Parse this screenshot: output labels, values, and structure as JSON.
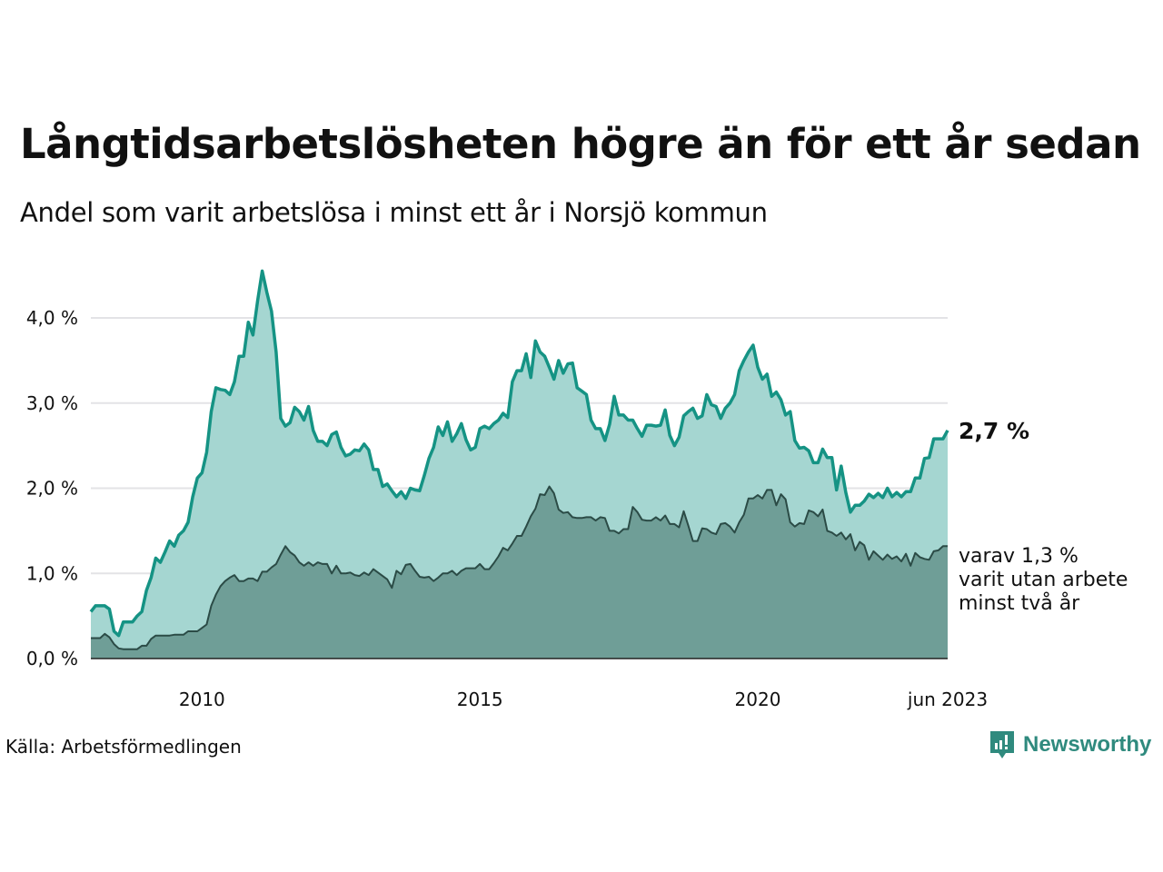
{
  "header": {
    "title": "Långtidsarbetslösheten högre än för ett år sedan",
    "subtitle": "Andel som varit arbetslösa i minst ett år i Norsjö kommun"
  },
  "footer": {
    "source": "Källa: Arbetsförmedlingen",
    "brand": "Newsworthy",
    "brand_icon": "newsworthy-logo-icon"
  },
  "colors": {
    "total_line": "#159384",
    "total_fill": "#a5d6d1",
    "long_line": "#2b4b46",
    "long_fill": "#6f9e97",
    "grid": "#e3e3e6",
    "brand": "#2f8a7e"
  },
  "chart_data": {
    "type": "area",
    "title": "Långtidsarbetslösheten högre än för ett år sedan",
    "subtitle": "Andel som varit arbetslösa i minst ett år i Norsjö kommun",
    "xlabel": "",
    "ylabel": "",
    "x_start": "2008-01",
    "x_end": "2023-06",
    "frequency": "monthly",
    "ylim": [
      0,
      4.6
    ],
    "y_ticks": [
      0,
      1,
      2,
      3,
      4
    ],
    "y_tick_labels": [
      "0,0 %",
      "1,0 %",
      "2,0 %",
      "3,0 %",
      "4,0 %"
    ],
    "x_ticks": [
      "2010-01",
      "2015-01",
      "2020-01",
      "2023-06"
    ],
    "x_tick_labels": [
      "2010",
      "2015",
      "2020",
      "jun 2023"
    ],
    "grid": true,
    "legend": "none (direct end labels, right)",
    "series": [
      {
        "name": "Arbetslösa minst ett år",
        "end_label": "2,7 %",
        "values": [
          0.55,
          0.62,
          0.62,
          0.62,
          0.58,
          0.32,
          0.27,
          0.43,
          0.43,
          0.43,
          0.5,
          0.55,
          0.8,
          0.95,
          1.18,
          1.13,
          1.25,
          1.38,
          1.32,
          1.45,
          1.5,
          1.6,
          1.9,
          2.12,
          2.18,
          2.42,
          2.9,
          3.18,
          3.16,
          3.15,
          3.1,
          3.25,
          3.55,
          3.55,
          3.95,
          3.8,
          4.2,
          4.55,
          4.3,
          4.08,
          3.6,
          2.82,
          2.73,
          2.77,
          2.95,
          2.9,
          2.8,
          2.96,
          2.68,
          2.55,
          2.55,
          2.5,
          2.63,
          2.66,
          2.48,
          2.38,
          2.4,
          2.45,
          2.44,
          2.52,
          2.45,
          2.22,
          2.22,
          2.02,
          2.05,
          1.97,
          1.9,
          1.96,
          1.88,
          2.0,
          1.98,
          1.97,
          2.15,
          2.35,
          2.48,
          2.72,
          2.62,
          2.78,
          2.55,
          2.64,
          2.76,
          2.57,
          2.45,
          2.48,
          2.7,
          2.73,
          2.7,
          2.76,
          2.8,
          2.88,
          2.83,
          3.25,
          3.38,
          3.38,
          3.58,
          3.3,
          3.73,
          3.6,
          3.55,
          3.42,
          3.28,
          3.5,
          3.35,
          3.46,
          3.47,
          3.18,
          3.14,
          3.1,
          2.8,
          2.7,
          2.7,
          2.56,
          2.75,
          3.08,
          2.86,
          2.86,
          2.8,
          2.8,
          2.7,
          2.61,
          2.74,
          2.74,
          2.73,
          2.74,
          2.92,
          2.62,
          2.5,
          2.6,
          2.85,
          2.9,
          2.94,
          2.82,
          2.85,
          3.1,
          2.98,
          2.96,
          2.82,
          2.94,
          3.0,
          3.1,
          3.38,
          3.5,
          3.6,
          3.68,
          3.42,
          3.28,
          3.34,
          3.08,
          3.13,
          3.04,
          2.86,
          2.9,
          2.56,
          2.47,
          2.48,
          2.44,
          2.3,
          2.3,
          2.46,
          2.36,
          2.36,
          1.98,
          2.26,
          1.95,
          1.72,
          1.8,
          1.8,
          1.85,
          1.93,
          1.89,
          1.94,
          1.89,
          2.0,
          1.9,
          1.95,
          1.9,
          1.96,
          1.96,
          2.12,
          2.12,
          2.35,
          2.36,
          2.58,
          2.58,
          2.58,
          2.68
        ]
      },
      {
        "name": "varav utan arbete minst två år",
        "end_label": [
          "varav 1,3 %",
          "varit utan arbete",
          "minst två år"
        ],
        "values": [
          0.24,
          0.24,
          0.24,
          0.29,
          0.25,
          0.17,
          0.12,
          0.11,
          0.11,
          0.11,
          0.11,
          0.15,
          0.15,
          0.23,
          0.27,
          0.27,
          0.27,
          0.27,
          0.28,
          0.28,
          0.28,
          0.32,
          0.32,
          0.32,
          0.36,
          0.4,
          0.62,
          0.75,
          0.85,
          0.91,
          0.95,
          0.98,
          0.91,
          0.91,
          0.94,
          0.94,
          0.91,
          1.02,
          1.02,
          1.07,
          1.11,
          1.22,
          1.32,
          1.25,
          1.21,
          1.13,
          1.09,
          1.13,
          1.09,
          1.13,
          1.11,
          1.11,
          1.0,
          1.09,
          1.0,
          1.0,
          1.01,
          0.98,
          0.97,
          1.01,
          0.98,
          1.05,
          1.01,
          0.97,
          0.93,
          0.83,
          1.03,
          0.99,
          1.1,
          1.11,
          1.03,
          0.96,
          0.95,
          0.96,
          0.91,
          0.95,
          1.0,
          1.0,
          1.03,
          0.98,
          1.03,
          1.06,
          1.06,
          1.06,
          1.11,
          1.05,
          1.05,
          1.12,
          1.2,
          1.3,
          1.27,
          1.35,
          1.44,
          1.44,
          1.55,
          1.67,
          1.76,
          1.93,
          1.92,
          2.02,
          1.94,
          1.75,
          1.71,
          1.72,
          1.66,
          1.65,
          1.65,
          1.66,
          1.66,
          1.62,
          1.66,
          1.65,
          1.5,
          1.5,
          1.47,
          1.52,
          1.52,
          1.78,
          1.72,
          1.63,
          1.62,
          1.62,
          1.66,
          1.62,
          1.68,
          1.58,
          1.58,
          1.54,
          1.73,
          1.56,
          1.38,
          1.38,
          1.53,
          1.52,
          1.48,
          1.46,
          1.58,
          1.59,
          1.55,
          1.48,
          1.6,
          1.69,
          1.88,
          1.88,
          1.92,
          1.88,
          1.98,
          1.98,
          1.8,
          1.93,
          1.87,
          1.6,
          1.55,
          1.59,
          1.58,
          1.74,
          1.72,
          1.67,
          1.75,
          1.5,
          1.48,
          1.44,
          1.48,
          1.4,
          1.46,
          1.27,
          1.37,
          1.33,
          1.16,
          1.26,
          1.21,
          1.16,
          1.22,
          1.17,
          1.2,
          1.14,
          1.23,
          1.09,
          1.24,
          1.19,
          1.17,
          1.16,
          1.26,
          1.27,
          1.32,
          1.32
        ]
      }
    ]
  }
}
